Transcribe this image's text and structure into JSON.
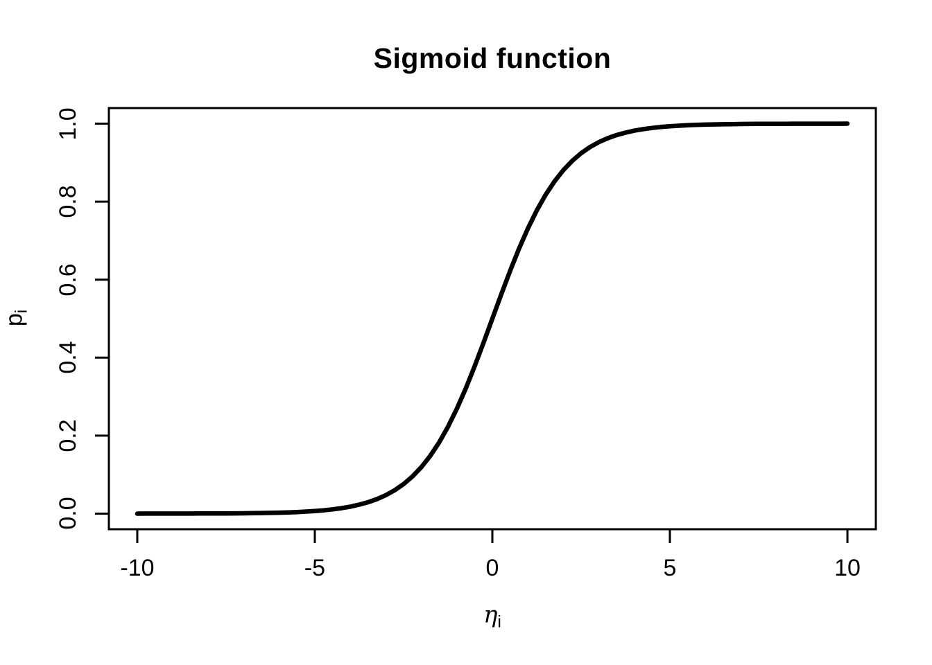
{
  "page": {
    "background": "#ffffff"
  },
  "chart_data": {
    "type": "line",
    "title": "Sigmoid function",
    "xlabel": "eta_i",
    "ylabel": "p_i",
    "xlabel_parts": {
      "base": "η",
      "subscript": "i"
    },
    "ylabel_parts": {
      "base": "p",
      "subscript": "i"
    },
    "xlim": [
      -10,
      10
    ],
    "ylim": [
      0,
      1
    ],
    "x_ticks": [
      -10,
      -5,
      0,
      5,
      10
    ],
    "x_tick_labels": [
      "-10",
      "-5",
      "0",
      "5",
      "10"
    ],
    "y_ticks": [
      0,
      0.2,
      0.4,
      0.6,
      0.8,
      1
    ],
    "y_tick_labels": [
      "0.0",
      "0.2",
      "0.4",
      "0.6",
      "0.8",
      "1.0"
    ],
    "grid": false,
    "legend": "none",
    "line_color": "#000000",
    "axis_color": "#000000",
    "line_width": 6.5,
    "series": [
      {
        "name": "sigmoid",
        "x": [
          -10,
          -9.75,
          -9.5,
          -9.25,
          -9,
          -8.75,
          -8.5,
          -8.25,
          -8,
          -7.75,
          -7.5,
          -7.25,
          -7,
          -6.75,
          -6.5,
          -6.25,
          -6,
          -5.75,
          -5.5,
          -5.25,
          -5,
          -4.75,
          -4.5,
          -4.25,
          -4,
          -3.75,
          -3.5,
          -3.25,
          -3,
          -2.75,
          -2.5,
          -2.25,
          -2,
          -1.75,
          -1.5,
          -1.25,
          -1,
          -0.75,
          -0.5,
          -0.25,
          0,
          0.25,
          0.5,
          0.75,
          1,
          1.25,
          1.5,
          1.75,
          2,
          2.25,
          2.5,
          2.75,
          3,
          3.25,
          3.5,
          3.75,
          4,
          4.25,
          4.5,
          4.75,
          5,
          5.25,
          5.5,
          5.75,
          6,
          6.25,
          6.5,
          6.75,
          7,
          7.25,
          7.5,
          7.75,
          8,
          8.25,
          8.5,
          8.75,
          9,
          9.25,
          9.5,
          9.75,
          10
        ],
        "y": [
          5e-05,
          6e-05,
          7e-05,
          0.0001,
          0.00012,
          0.00016,
          0.0002,
          0.00026,
          0.00034,
          0.00043,
          0.00055,
          0.00071,
          0.00091,
          0.00117,
          0.0015,
          0.00193,
          0.00247,
          0.00317,
          0.00407,
          0.00522,
          0.00669,
          0.00858,
          0.01099,
          0.01407,
          0.01799,
          0.02298,
          0.02931,
          0.03733,
          0.04743,
          0.06009,
          0.07586,
          0.09535,
          0.1192,
          0.14805,
          0.18243,
          0.2227,
          0.26894,
          0.32082,
          0.37754,
          0.43782,
          0.5,
          0.56218,
          0.62246,
          0.67918,
          0.73106,
          0.7773,
          0.81757,
          0.85195,
          0.8808,
          0.90465,
          0.92414,
          0.93991,
          0.95257,
          0.96267,
          0.97069,
          0.97702,
          0.98201,
          0.98593,
          0.98901,
          0.99142,
          0.99331,
          0.99478,
          0.99593,
          0.99683,
          0.99753,
          0.99807,
          0.9985,
          0.99883,
          0.99909,
          0.99929,
          0.99945,
          0.99957,
          0.99966,
          0.99974,
          0.9998,
          0.99984,
          0.99988,
          0.9999,
          0.99993,
          0.99994,
          0.99995
        ]
      }
    ]
  }
}
